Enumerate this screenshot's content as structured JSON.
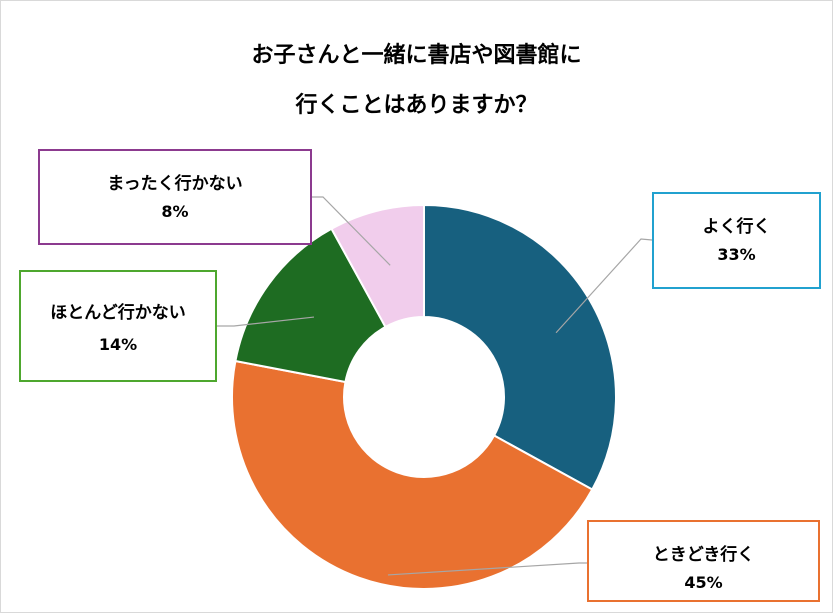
{
  "title_lines": [
    "お子さんと一緒に書店や図書館に",
    "行くことはありますか？"
  ],
  "chart_data": {
    "type": "pie",
    "variant": "donut",
    "title": "お子さんと一緒に書店や図書館に 行くことはありますか？",
    "slices": [
      {
        "label": "よく行く",
        "value": 33,
        "display": "33%",
        "color": "#17607f",
        "border": "#21a1cf"
      },
      {
        "label": "ときどき行く",
        "value": 45,
        "display": "45%",
        "color": "#e97130",
        "border": "#e97130"
      },
      {
        "label": "ほとんど行かない",
        "value": 14,
        "display": "14%",
        "color": "#1e6c22",
        "border": "#4ea72e"
      },
      {
        "label": "まったく行かない",
        "value": 8,
        "display": "8%",
        "color": "#f1cdec",
        "border": "#8c3a8f"
      }
    ],
    "legend": "none",
    "data_labels": "callout boxes with leader lines"
  }
}
